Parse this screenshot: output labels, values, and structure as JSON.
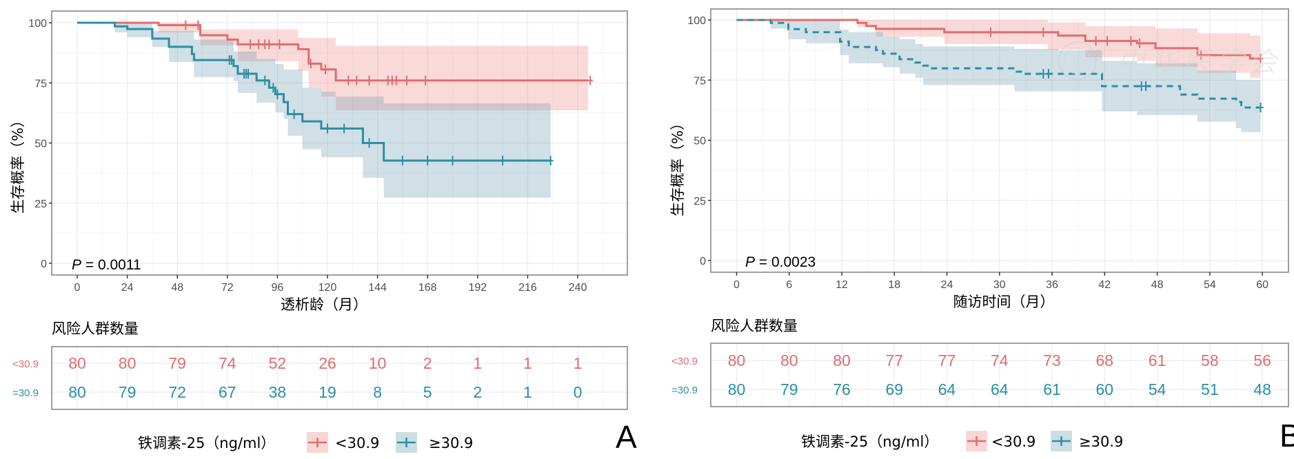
{
  "colors": {
    "low": "#E06C6E",
    "high": "#2A8FA3",
    "low_fill": "#EE8C86",
    "high_fill": "#6F9DB2"
  },
  "watermark": "中华医学会",
  "chart_data": [
    {
      "type": "line",
      "subtype": "kaplan-meier",
      "panel_label": "A",
      "xlabel": "透析龄（月）",
      "ylabel": "生存概率（%）",
      "xlim": [
        0,
        250
      ],
      "ylim": [
        0,
        100
      ],
      "xticks": [
        "0",
        "24",
        "48",
        "72",
        "96",
        "120",
        "144",
        "168",
        "192",
        "216",
        "240"
      ],
      "yticks": [
        "0",
        "25",
        "50",
        "75",
        "100"
      ],
      "grid": true,
      "p_value": {
        "label": "P",
        "text": " = 0.0011"
      },
      "legend": {
        "title": "铁调素-25（ng/ml）",
        "position": "bottom",
        "items": [
          "<30.9",
          "≥30.9"
        ]
      },
      "series": [
        {
          "name": "<30.9",
          "color_key": "low",
          "dashed": false,
          "end": 245,
          "steps": [
            [
              0,
              100
            ],
            [
              39,
              99
            ],
            [
              59,
              94.8
            ],
            [
              72,
              93
            ],
            [
              77,
              91
            ],
            [
              106,
              89
            ],
            [
              111,
              83
            ],
            [
              117,
              80.6
            ],
            [
              124,
              76
            ]
          ],
          "censor": [
            52,
            58,
            83,
            87,
            90,
            92,
            97,
            112,
            119,
            130,
            134,
            140,
            149,
            151,
            153,
            158,
            167,
            246
          ],
          "ci": [
            [
              0,
              100,
              100
            ],
            [
              39,
              96,
              100
            ],
            [
              59,
              90.6,
              97.2
            ],
            [
              77,
              84,
              97.2
            ],
            [
              106,
              80,
              93.7
            ],
            [
              111,
              73,
              93.7
            ],
            [
              117,
              69.3,
              93.7
            ],
            [
              124,
              63.6,
              90.4
            ]
          ]
        },
        {
          "name": "≥30.9",
          "color_key": "high",
          "dashed": false,
          "end": 227,
          "steps": [
            [
              0,
              100
            ],
            [
              18,
              98.5
            ],
            [
              24,
              97.4
            ],
            [
              36,
              93.4
            ],
            [
              44,
              90
            ],
            [
              55,
              87
            ],
            [
              56,
              84.5
            ],
            [
              75,
              82
            ],
            [
              77,
              78.8
            ],
            [
              86,
              76
            ],
            [
              92,
              73
            ],
            [
              95,
              70.3
            ],
            [
              99,
              67
            ],
            [
              101,
              62
            ],
            [
              108,
              59
            ],
            [
              117,
              56
            ],
            [
              137,
              50
            ],
            [
              147,
              42.7
            ]
          ],
          "censor": [
            73,
            74,
            80,
            81,
            82,
            90,
            94,
            96,
            104,
            120,
            128,
            140,
            156,
            168,
            180,
            204,
            227
          ],
          "ci": [
            [
              0,
              100,
              100
            ],
            [
              18,
              96,
              100
            ],
            [
              24,
              94,
              100
            ],
            [
              36,
              89.9,
              96.6
            ],
            [
              44,
              83.7,
              96.6
            ],
            [
              56,
              77.4,
              93
            ],
            [
              75,
              75.8,
              88
            ],
            [
              77,
              70.8,
              88
            ],
            [
              86,
              66.8,
              85
            ],
            [
              95,
              62.7,
              82.8
            ],
            [
              99,
              60,
              80.6
            ],
            [
              101,
              53,
              80.6
            ],
            [
              108,
              47.4,
              73
            ],
            [
              117,
              44.1,
              71.3
            ],
            [
              124,
              44.1,
              69.3
            ],
            [
              137,
              35.5,
              69.3
            ],
            [
              147,
              27.3,
              66.5
            ]
          ]
        }
      ],
      "risk_table": {
        "title": "风险人群数量",
        "rows": [
          {
            "label": "<30.9",
            "color_key": "low",
            "values": [
              "80",
              "80",
              "79",
              "74",
              "52",
              "26",
              "10",
              "2",
              "1",
              "1",
              "1"
            ]
          },
          {
            "label": "=30.9",
            "color_key": "high",
            "values": [
              "80",
              "79",
              "72",
              "67",
              "38",
              "19",
              "8",
              "5",
              "2",
              "1",
              "0"
            ]
          }
        ]
      }
    },
    {
      "type": "line",
      "subtype": "kaplan-meier",
      "panel_label": "B",
      "xlabel": "随访时间（月）",
      "ylabel": "生存概率（%）",
      "xlim": [
        0,
        60
      ],
      "ylim": [
        0,
        100
      ],
      "xticks": [
        "0",
        "6",
        "12",
        "18",
        "24",
        "30",
        "36",
        "42",
        "48",
        "54",
        "60"
      ],
      "yticks": [
        "0",
        "25",
        "50",
        "75",
        "100"
      ],
      "grid": true,
      "p_value": {
        "label": "P",
        "text": " = 0.0023"
      },
      "legend": {
        "title": "铁调素-25（ng/ml）",
        "position": "bottom",
        "items": [
          "<30.9",
          "≥30.9"
        ]
      },
      "series": [
        {
          "name": "<30.9",
          "color_key": "low",
          "dashed": false,
          "end": 59.8,
          "steps": [
            [
              0,
              100
            ],
            [
              13.8,
              98.8
            ],
            [
              14.8,
              97.5
            ],
            [
              15.9,
              96.3
            ],
            [
              23.7,
              94.9
            ],
            [
              36.7,
              93.5
            ],
            [
              39.8,
              91.3
            ],
            [
              45.7,
              90.3
            ],
            [
              47.8,
              88.3
            ],
            [
              52.6,
              85.4
            ],
            [
              58.6,
              84
            ]
          ],
          "censor": [
            29,
            35,
            41,
            42.3,
            45,
            46,
            53,
            59.8
          ],
          "ci": [
            [
              0,
              100,
              100
            ],
            [
              13.8,
              97,
              100
            ],
            [
              15.9,
              93,
              100
            ],
            [
              23.7,
              90,
              100
            ],
            [
              35.5,
              87.7,
              99
            ],
            [
              39.8,
              84.5,
              97.5
            ],
            [
              45.7,
              83,
              97.5
            ],
            [
              47.8,
              80.5,
              96.5
            ],
            [
              52.6,
              78,
              94.5
            ],
            [
              58.6,
              75.9,
              93.5
            ]
          ]
        },
        {
          "name": "≥30.9",
          "color_key": "high",
          "dashed": true,
          "end": 59.8,
          "steps": [
            [
              0,
              100
            ],
            [
              3.9,
              98.8
            ],
            [
              5.9,
              96.2
            ],
            [
              7.9,
              94.9
            ],
            [
              11.8,
              91
            ],
            [
              12.8,
              88.8
            ],
            [
              15.9,
              87.5
            ],
            [
              16.7,
              86
            ],
            [
              18.6,
              83.7
            ],
            [
              20.4,
              82.3
            ],
            [
              21.3,
              81
            ],
            [
              22,
              79.9
            ],
            [
              31.7,
              78.5
            ],
            [
              32.7,
              77.6
            ],
            [
              41.7,
              72.5
            ],
            [
              50.6,
              69
            ],
            [
              52.6,
              67.3
            ],
            [
              57,
              65.9
            ],
            [
              57.6,
              63.6
            ]
          ],
          "censor": [
            35,
            35.6,
            46.2,
            46.7,
            59.8
          ],
          "ci": [
            [
              0,
              100,
              100
            ],
            [
              3.9,
              96.4,
              100
            ],
            [
              5.9,
              92,
              100
            ],
            [
              7.9,
              90.3,
              100
            ],
            [
              11.8,
              85.4,
              96
            ],
            [
              12.8,
              82,
              95
            ],
            [
              16.7,
              80.4,
              93
            ],
            [
              18.6,
              77.7,
              92
            ],
            [
              20.4,
              76,
              90
            ],
            [
              21.3,
              73,
              89
            ],
            [
              31.7,
              70.3,
              88
            ],
            [
              36.7,
              70.3,
              87.4
            ],
            [
              41.7,
              62,
              83
            ],
            [
              45.7,
              60.5,
              82
            ],
            [
              52.6,
              57.7,
              79
            ],
            [
              57,
              55,
              75
            ],
            [
              57.6,
              53.4,
              75
            ]
          ]
        }
      ],
      "risk_table": {
        "title": "风险人群数量",
        "rows": [
          {
            "label": "<30.9",
            "color_key": "low",
            "values": [
              "80",
              "80",
              "80",
              "77",
              "77",
              "74",
              "73",
              "68",
              "61",
              "58",
              "56"
            ]
          },
          {
            "label": "=30.9",
            "color_key": "high",
            "values": [
              "80",
              "79",
              "76",
              "69",
              "64",
              "64",
              "61",
              "60",
              "54",
              "51",
              "48"
            ]
          }
        ]
      }
    }
  ]
}
